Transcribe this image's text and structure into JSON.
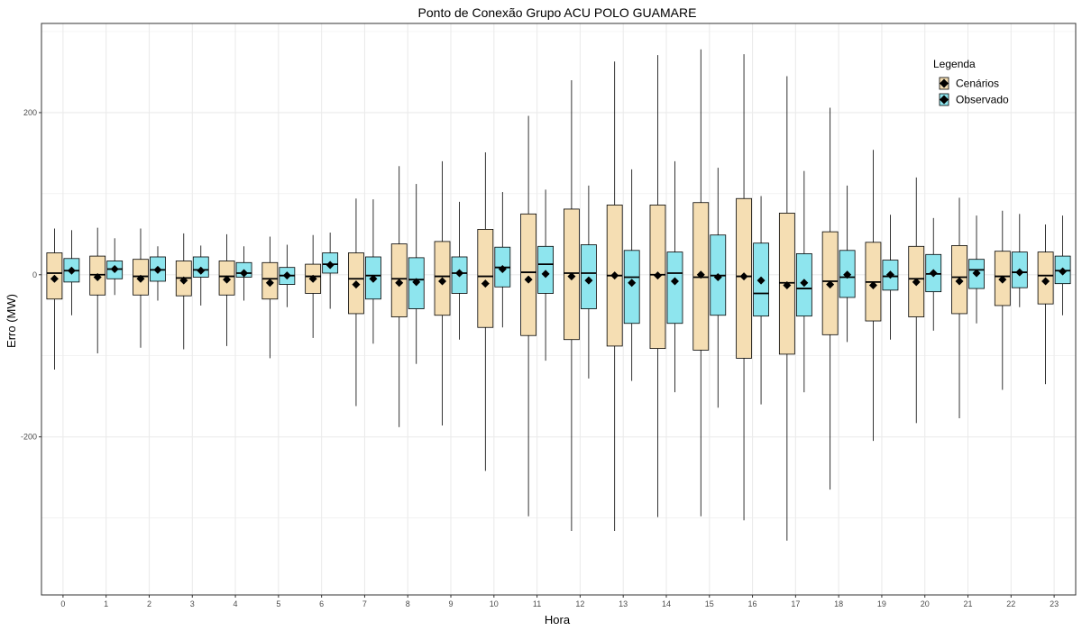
{
  "chart_data": {
    "type": "boxplot",
    "title": "Ponto de Conexão Grupo ACU POLO GUAMARE",
    "xlabel": "Hora",
    "ylabel": "Erro (MW)",
    "ylim": [
      -395,
      310
    ],
    "yticks": [
      -200,
      0,
      200
    ],
    "grid": true,
    "legend": {
      "title": "Legenda",
      "position": "top-right",
      "entries": [
        "Cenários",
        "Observado"
      ]
    },
    "colors": {
      "Cenários": "#f5deb3",
      "Observado": "#8ee5ee",
      "outline": "#000000",
      "grid": "#ebebeb",
      "panel_border": "#333333"
    },
    "categories": [
      "0",
      "1",
      "2",
      "3",
      "4",
      "5",
      "6",
      "7",
      "8",
      "9",
      "10",
      "11",
      "12",
      "13",
      "14",
      "15",
      "16",
      "17",
      "18",
      "19",
      "20",
      "21",
      "22",
      "23"
    ],
    "series": [
      {
        "name": "Cenários",
        "boxes": [
          {
            "lower": -117,
            "q1": -30,
            "median": 2,
            "q3": 27,
            "upper": 57,
            "mean": -5
          },
          {
            "lower": -97,
            "q1": -25,
            "median": 0,
            "q3": 23,
            "upper": 58,
            "mean": -3
          },
          {
            "lower": -90,
            "q1": -25,
            "median": -2,
            "q3": 19,
            "upper": 57,
            "mean": -5
          },
          {
            "lower": -92,
            "q1": -26,
            "median": -4,
            "q3": 17,
            "upper": 51,
            "mean": -7
          },
          {
            "lower": -88,
            "q1": -25,
            "median": -2,
            "q3": 17,
            "upper": 50,
            "mean": -6
          },
          {
            "lower": -103,
            "q1": -30,
            "median": -5,
            "q3": 15,
            "upper": 47,
            "mean": -10
          },
          {
            "lower": -78,
            "q1": -23,
            "median": -2,
            "q3": 13,
            "upper": 49,
            "mean": -5
          },
          {
            "lower": -162,
            "q1": -48,
            "median": -5,
            "q3": 27,
            "upper": 94,
            "mean": -12
          },
          {
            "lower": -188,
            "q1": -52,
            "median": -5,
            "q3": 38,
            "upper": 134,
            "mean": -10
          },
          {
            "lower": -186,
            "q1": -50,
            "median": -2,
            "q3": 41,
            "upper": 140,
            "mean": -8
          },
          {
            "lower": -242,
            "q1": -65,
            "median": -2,
            "q3": 56,
            "upper": 151,
            "mean": -11
          },
          {
            "lower": -298,
            "q1": -75,
            "median": 3,
            "q3": 75,
            "upper": 196,
            "mean": -6
          },
          {
            "lower": -316,
            "q1": -80,
            "median": 2,
            "q3": 81,
            "upper": 240,
            "mean": -2
          },
          {
            "lower": -316,
            "q1": -88,
            "median": -1,
            "q3": 86,
            "upper": 263,
            "mean": -1
          },
          {
            "lower": -299,
            "q1": -91,
            "median": 0,
            "q3": 86,
            "upper": 271,
            "mean": -1
          },
          {
            "lower": -298,
            "q1": -93,
            "median": -3,
            "q3": 89,
            "upper": 278,
            "mean": 0
          },
          {
            "lower": -303,
            "q1": -103,
            "median": -2,
            "q3": 94,
            "upper": 272,
            "mean": -2
          },
          {
            "lower": -328,
            "q1": -98,
            "median": -10,
            "q3": 76,
            "upper": 245,
            "mean": -13
          },
          {
            "lower": -265,
            "q1": -74,
            "median": -8,
            "q3": 53,
            "upper": 206,
            "mean": -12
          },
          {
            "lower": -205,
            "q1": -57,
            "median": -9,
            "q3": 40,
            "upper": 154,
            "mean": -13
          },
          {
            "lower": -183,
            "q1": -52,
            "median": -5,
            "q3": 35,
            "upper": 120,
            "mean": -9
          },
          {
            "lower": -177,
            "q1": -48,
            "median": -3,
            "q3": 36,
            "upper": 95,
            "mean": -8
          },
          {
            "lower": -142,
            "q1": -38,
            "median": -2,
            "q3": 29,
            "upper": 79,
            "mean": -6
          },
          {
            "lower": -135,
            "q1": -36,
            "median": -1,
            "q3": 28,
            "upper": 62,
            "mean": -8
          }
        ]
      },
      {
        "name": "Observado",
        "boxes": [
          {
            "lower": -50,
            "q1": -9,
            "median": 5,
            "q3": 20,
            "upper": 55,
            "mean": 5
          },
          {
            "lower": -25,
            "q1": -5,
            "median": 7,
            "q3": 17,
            "upper": 45,
            "mean": 7
          },
          {
            "lower": -32,
            "q1": -8,
            "median": 6,
            "q3": 22,
            "upper": 35,
            "mean": 6
          },
          {
            "lower": -38,
            "q1": -3,
            "median": 6,
            "q3": 22,
            "upper": 36,
            "mean": 5
          },
          {
            "lower": -32,
            "q1": -3,
            "median": 2,
            "q3": 15,
            "upper": 35,
            "mean": 2
          },
          {
            "lower": -40,
            "q1": -12,
            "median": -1,
            "q3": 9,
            "upper": 37,
            "mean": -1
          },
          {
            "lower": -42,
            "q1": 2,
            "median": 13,
            "q3": 27,
            "upper": 52,
            "mean": 12
          },
          {
            "lower": -85,
            "q1": -30,
            "median": -1,
            "q3": 22,
            "upper": 93,
            "mean": -5
          },
          {
            "lower": -110,
            "q1": -42,
            "median": -6,
            "q3": 21,
            "upper": 112,
            "mean": -9
          },
          {
            "lower": -80,
            "q1": -23,
            "median": 2,
            "q3": 22,
            "upper": 90,
            "mean": 2
          },
          {
            "lower": -65,
            "q1": -15,
            "median": 9,
            "q3": 34,
            "upper": 102,
            "mean": 7
          },
          {
            "lower": -106,
            "q1": -23,
            "median": 13,
            "q3": 35,
            "upper": 105,
            "mean": 1
          },
          {
            "lower": -128,
            "q1": -42,
            "median": 2,
            "q3": 37,
            "upper": 110,
            "mean": -7
          },
          {
            "lower": -131,
            "q1": -60,
            "median": -3,
            "q3": 30,
            "upper": 130,
            "mean": -10
          },
          {
            "lower": -145,
            "q1": -60,
            "median": 2,
            "q3": 28,
            "upper": 140,
            "mean": -8
          },
          {
            "lower": -164,
            "q1": -50,
            "median": -1,
            "q3": 49,
            "upper": 132,
            "mean": -3
          },
          {
            "lower": -160,
            "q1": -51,
            "median": -23,
            "q3": 39,
            "upper": 97,
            "mean": -7
          },
          {
            "lower": -145,
            "q1": -51,
            "median": -17,
            "q3": 26,
            "upper": 128,
            "mean": -10
          },
          {
            "lower": -83,
            "q1": -28,
            "median": -3,
            "q3": 30,
            "upper": 110,
            "mean": 0
          },
          {
            "lower": -80,
            "q1": -19,
            "median": -2,
            "q3": 18,
            "upper": 74,
            "mean": 0
          },
          {
            "lower": -69,
            "q1": -21,
            "median": 1,
            "q3": 25,
            "upper": 70,
            "mean": 2
          },
          {
            "lower": -60,
            "q1": -17,
            "median": 6,
            "q3": 19,
            "upper": 73,
            "mean": 2
          },
          {
            "lower": -40,
            "q1": -16,
            "median": 3,
            "q3": 28,
            "upper": 75,
            "mean": 3
          },
          {
            "lower": -50,
            "q1": -11,
            "median": 5,
            "q3": 23,
            "upper": 73,
            "mean": 4
          }
        ]
      }
    ]
  }
}
